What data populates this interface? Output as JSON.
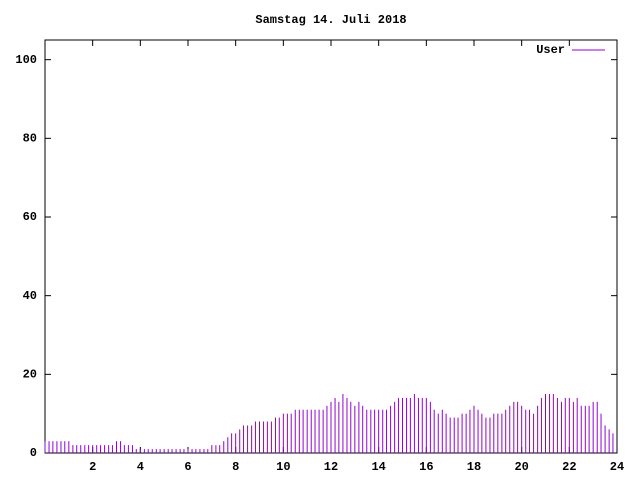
{
  "chart_data": {
    "type": "impulse",
    "title": "Samstag 14. Juli 2018",
    "xlim": [
      0,
      24
    ],
    "xticks": [
      2,
      4,
      6,
      8,
      10,
      12,
      14,
      16,
      18,
      20,
      22,
      24
    ],
    "ylim": [
      0,
      105
    ],
    "yticks": [
      0,
      20,
      40,
      60,
      80,
      100
    ],
    "legend": "top-right",
    "x": [
      0,
      0.17,
      0.33,
      0.5,
      0.67,
      0.83,
      1,
      1.17,
      1.33,
      1.5,
      1.67,
      1.83,
      2,
      2.17,
      2.33,
      2.5,
      2.67,
      2.83,
      3,
      3.17,
      3.33,
      3.5,
      3.67,
      3.83,
      4,
      4.17,
      4.33,
      4.5,
      4.67,
      4.83,
      5,
      5.17,
      5.33,
      5.5,
      5.67,
      5.83,
      6,
      6.17,
      6.33,
      6.5,
      6.67,
      6.83,
      7,
      7.17,
      7.33,
      7.5,
      7.67,
      7.83,
      8,
      8.17,
      8.33,
      8.5,
      8.67,
      8.83,
      9,
      9.17,
      9.33,
      9.5,
      9.67,
      9.83,
      10,
      10.17,
      10.33,
      10.5,
      10.67,
      10.83,
      11,
      11.17,
      11.33,
      11.5,
      11.67,
      11.83,
      12,
      12.17,
      12.33,
      12.5,
      12.67,
      12.83,
      13,
      13.17,
      13.33,
      13.5,
      13.67,
      13.83,
      14,
      14.17,
      14.33,
      14.5,
      14.67,
      14.83,
      15,
      15.17,
      15.33,
      15.5,
      15.67,
      15.83,
      16,
      16.17,
      16.33,
      16.5,
      16.67,
      16.83,
      17,
      17.17,
      17.33,
      17.5,
      17.67,
      17.83,
      18,
      18.17,
      18.33,
      18.5,
      18.67,
      18.83,
      19,
      19.17,
      19.33,
      19.5,
      19.67,
      19.83,
      20,
      20.17,
      20.33,
      20.5,
      20.67,
      20.83,
      21,
      21.17,
      21.33,
      21.5,
      21.67,
      21.83,
      22,
      22.17,
      22.33,
      22.5,
      22.67,
      22.83,
      23,
      23.17,
      23.33,
      23.5,
      23.67,
      23.83
    ],
    "series": [
      {
        "name": "User",
        "color": "#9400d3",
        "values": [
          3,
          3,
          3,
          3,
          3,
          3,
          3,
          2,
          2,
          2,
          2,
          2,
          2,
          2,
          2,
          2,
          2,
          2,
          3,
          3,
          2,
          2,
          2,
          1,
          1,
          1,
          1,
          1,
          1,
          1,
          1,
          1,
          1,
          1,
          1,
          1,
          1,
          1,
          1,
          1,
          1,
          1,
          2,
          2,
          2,
          3,
          4,
          5,
          5,
          6,
          7,
          7,
          7,
          8,
          8,
          8,
          8,
          8,
          9,
          9,
          10,
          10,
          10,
          11,
          11,
          11,
          11,
          11,
          11,
          11,
          11,
          12,
          13,
          14,
          13,
          15,
          14,
          13,
          12,
          13,
          12,
          11,
          11,
          11,
          11,
          11,
          11,
          12,
          13,
          14,
          14,
          14,
          14,
          15,
          14,
          14,
          14,
          13,
          11,
          10,
          11,
          10,
          9,
          9,
          9,
          10,
          10,
          11,
          12,
          11,
          10,
          9,
          9,
          10,
          10,
          10,
          11,
          12,
          13,
          13,
          12,
          11,
          11,
          10,
          12,
          14,
          15,
          15,
          15,
          14,
          13,
          14,
          14,
          13,
          14,
          12,
          12,
          12,
          13,
          13,
          10,
          7,
          6,
          5
        ]
      }
    ]
  }
}
